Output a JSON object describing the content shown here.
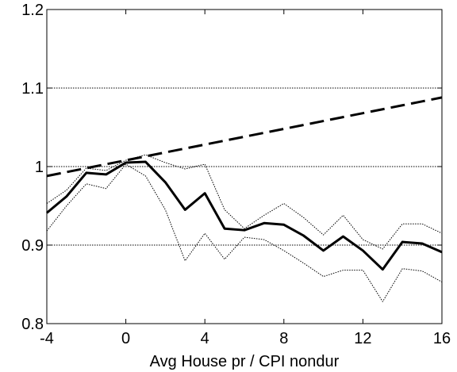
{
  "chart_data": {
    "type": "line",
    "x_label": "Avg House pr / CPI nondur",
    "x": [
      -4,
      -3,
      -2,
      -1,
      0,
      1,
      2,
      3,
      4,
      5,
      6,
      7,
      8,
      9,
      10,
      11,
      12,
      13,
      14,
      15,
      16
    ],
    "series": [
      {
        "color": "#000000",
        "style": "dashed",
        "width": 3,
        "values": [
          0.988,
          0.993,
          0.998,
          1.003,
          1.008,
          1.013,
          1.018,
          1.023,
          1.028,
          1.033,
          1.038,
          1.043,
          1.048,
          1.053,
          1.058,
          1.063,
          1.068,
          1.073,
          1.078,
          1.083,
          1.088
        ]
      },
      {
        "color": "#000000",
        "style": "dotted",
        "width": 1,
        "values": [
          0.953,
          0.97,
          0.998,
          0.995,
          1.008,
          1.015,
          1.005,
          0.997,
          1.003,
          0.945,
          0.921,
          0.938,
          0.953,
          0.935,
          0.913,
          0.938,
          0.907,
          0.895,
          0.927,
          0.927,
          0.915
        ]
      },
      {
        "color": "#000000",
        "style": "dotted",
        "width": 1,
        "values": [
          0.918,
          0.95,
          0.978,
          0.972,
          1.003,
          0.988,
          0.945,
          0.88,
          0.915,
          0.882,
          0.91,
          0.907,
          0.893,
          0.877,
          0.86,
          0.868,
          0.868,
          0.828,
          0.87,
          0.867,
          0.853
        ]
      },
      {
        "color": "#000000",
        "style": "solid",
        "width": 3,
        "values": [
          0.941,
          0.962,
          0.992,
          0.99,
          1.005,
          1.006,
          0.98,
          0.945,
          0.966,
          0.921,
          0.919,
          0.928,
          0.926,
          0.912,
          0.893,
          0.911,
          0.893,
          0.869,
          0.904,
          0.902,
          0.891
        ]
      }
    ],
    "xlim": [
      -4,
      16
    ],
    "xticks": [
      -4,
      0,
      4,
      8,
      12,
      16
    ],
    "ylim": [
      0.8,
      1.2
    ],
    "yticks": [
      0.8,
      0.9,
      1,
      1.1,
      1.2
    ],
    "grid": true
  }
}
